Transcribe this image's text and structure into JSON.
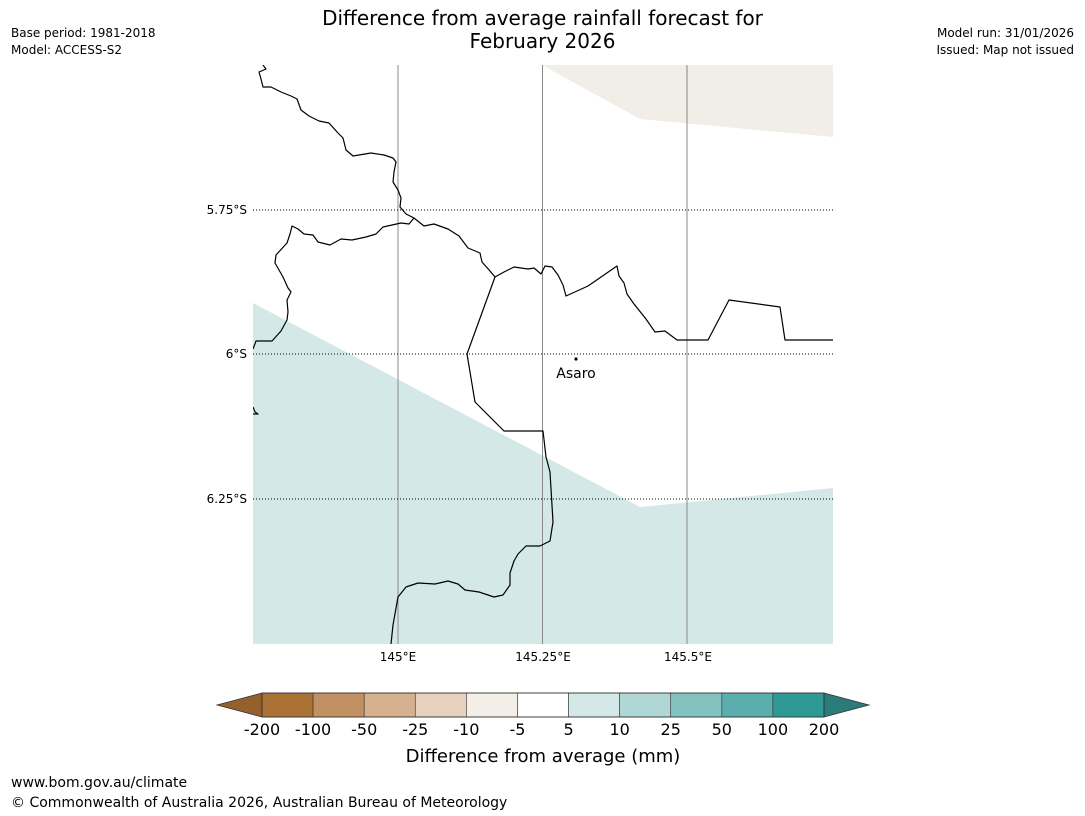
{
  "header": {
    "title_line1": "Difference from average rainfall forecast for",
    "title_line2": "February 2026",
    "base_period": "Base period: 1981-2018",
    "model": "Model: ACCESS-S2",
    "model_run": "Model run: 31/01/2026",
    "issued": "Issued: Map not issued"
  },
  "map": {
    "lat_labels": [
      "5.75°S",
      "6°S",
      "6.25°S"
    ],
    "lon_labels": [
      "145°E",
      "145.25°E",
      "145.5°E"
    ],
    "place_name": "Asaro",
    "colors": {
      "neutral_band": "#f1ede7",
      "wet_band": "#d4e8e7",
      "border_line": "#000000",
      "meridian_line": "#888888"
    }
  },
  "colorbar": {
    "tick_labels": [
      "-200",
      "-100",
      "-50",
      "-25",
      "-10",
      "-5",
      "5",
      "10",
      "25",
      "50",
      "100",
      "200"
    ],
    "segment_colors": [
      "#ab7236",
      "#c29163",
      "#d5b190",
      "#e6d2bf",
      "#f4eee8",
      "#ffffff",
      "#d4e8e7",
      "#b0d6d6",
      "#84c2bf",
      "#5cadad",
      "#2f9995"
    ],
    "low_extend_color": "#94602c",
    "high_extend_color": "#2a7c7a",
    "label": "Difference from average (mm)"
  },
  "footer": {
    "url": "www.bom.gov.au/climate",
    "copyright": "© Commonwealth of Australia 2026, Australian Bureau of Meteorology"
  }
}
